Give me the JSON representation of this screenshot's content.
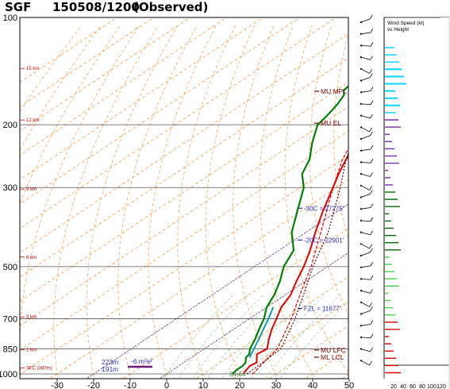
{
  "header": {
    "station": "SGF",
    "datetime": "150508/1200",
    "label": "(Observed)"
  },
  "wind_panel": {
    "title_line1": "Wind Speed (kt)",
    "title_line2": "vs Height",
    "x_ticks": [
      "20",
      "40",
      "60",
      "80",
      "100",
      "120"
    ]
  },
  "chart_data": {
    "type": "line",
    "title": "SGF 150508/1200 (Observed)",
    "x_axis": {
      "min": -30,
      "max": 50,
      "ticks": [
        -30,
        -20,
        -10,
        0,
        10,
        20,
        30,
        40,
        50
      ]
    },
    "y_axis": {
      "scale": "log",
      "min": 1000,
      "max": 100,
      "ticks": [
        100,
        200,
        300,
        500,
        700,
        850,
        1000
      ]
    },
    "height_labels": [
      {
        "text": "15 km",
        "p": 139
      },
      {
        "text": "12 km",
        "p": 194
      },
      {
        "text": "9 km",
        "p": 303
      },
      {
        "text": "6 km",
        "p": 470
      },
      {
        "text": "3 km",
        "p": 692
      },
      {
        "text": "1 km",
        "p": 855
      },
      {
        "text": "SFC (387m)",
        "p": 963
      }
    ],
    "series": [
      {
        "role": "temperature",
        "color": "#e00000",
        "points": [
          [
            1000,
            21
          ],
          [
            975,
            20.2
          ],
          [
            950,
            19.5
          ],
          [
            930,
            20
          ],
          [
            900,
            18
          ],
          [
            880,
            16.6
          ],
          [
            850,
            17.2
          ],
          [
            800,
            13.8
          ],
          [
            750,
            10.5
          ],
          [
            700,
            7.4
          ],
          [
            650,
            4
          ],
          [
            600,
            1.5
          ],
          [
            550,
            -2.5
          ],
          [
            500,
            -6.5
          ],
          [
            450,
            -11.5
          ],
          [
            400,
            -17.5
          ],
          [
            350,
            -24
          ],
          [
            300,
            -31
          ],
          [
            275,
            -35
          ],
          [
            250,
            -39
          ],
          [
            225,
            -43
          ],
          [
            200,
            -48
          ],
          [
            190,
            -50.5
          ],
          [
            175,
            -54
          ],
          [
            165,
            -56
          ],
          [
            160,
            -58
          ],
          [
            150,
            -58.5
          ],
          [
            140,
            -60
          ],
          [
            130,
            -61
          ],
          [
            120,
            -63.5
          ],
          [
            115,
            -65
          ],
          [
            110,
            -64.5
          ],
          [
            100,
            -65
          ]
        ]
      },
      {
        "role": "dewpoint",
        "color": "#008000",
        "points": [
          [
            1000,
            18
          ],
          [
            975,
            17.5
          ],
          [
            950,
            17.5
          ],
          [
            930,
            17
          ],
          [
            900,
            15
          ],
          [
            880,
            14.5
          ],
          [
            850,
            12.5
          ],
          [
            800,
            10
          ],
          [
            750,
            7
          ],
          [
            700,
            4
          ],
          [
            650,
            0
          ],
          [
            600,
            -3
          ],
          [
            550,
            -7
          ],
          [
            500,
            -12
          ],
          [
            450,
            -16
          ],
          [
            400,
            -24
          ],
          [
            350,
            -31
          ],
          [
            300,
            -39
          ],
          [
            275,
            -45
          ],
          [
            250,
            -49
          ],
          [
            225,
            -55
          ],
          [
            200,
            -61
          ],
          [
            190,
            -62
          ],
          [
            175,
            -64
          ],
          [
            165,
            -66
          ],
          [
            160,
            -68
          ],
          [
            150,
            -69
          ],
          [
            140,
            -73
          ],
          [
            130,
            -74.5
          ],
          [
            120,
            -77
          ],
          [
            115,
            -78
          ],
          [
            110,
            -78
          ],
          [
            100,
            -78
          ]
        ]
      },
      {
        "role": "virtual-temperature",
        "color": "#e00000",
        "style": "dashed",
        "points": [
          [
            1000,
            23.5
          ],
          [
            850,
            20
          ],
          [
            700,
            11.5
          ],
          [
            600,
            4
          ],
          [
            500,
            -4.5
          ],
          [
            400,
            -16
          ],
          [
            300,
            -31
          ],
          [
            250,
            -40
          ],
          [
            200,
            -49
          ],
          [
            150,
            -59
          ],
          [
            100,
            -66
          ]
        ]
      },
      {
        "role": "parcel-trace",
        "color": "#5a0000",
        "style": "dotted",
        "points": [
          [
            1000,
            22
          ],
          [
            850,
            21
          ],
          [
            700,
            12.5
          ],
          [
            600,
            5
          ],
          [
            500,
            -4
          ],
          [
            400,
            -14
          ],
          [
            300,
            -29
          ],
          [
            250,
            -39
          ],
          [
            200,
            -50
          ],
          [
            150,
            -65
          ],
          [
            100,
            -85
          ]
        ]
      },
      {
        "role": "wetbulb",
        "color": "#0090b0",
        "points": [
          [
            900,
            16
          ],
          [
            800,
            11
          ],
          [
            700,
            5.2
          ],
          [
            650,
            1.8
          ]
        ]
      }
    ],
    "reference_lines": [
      {
        "text": "MU MPL",
        "p": 161
      },
      {
        "text": "MU EL",
        "p": 198
      },
      {
        "text": "-30C = 27275'",
        "p": 343
      },
      {
        "text": "-20C = 22901'",
        "p": 421
      },
      {
        "text": "FZL = 11677'",
        "p": 655
      },
      {
        "text": "MU LFC",
        "p": 857
      },
      {
        "text": "ML LCL",
        "p": 898
      }
    ],
    "annotations": {
      "srh_1": "223m",
      "srh_2": "191m",
      "srh_unit": "-6 m²s²",
      "bottom_values": "64-64"
    }
  }
}
